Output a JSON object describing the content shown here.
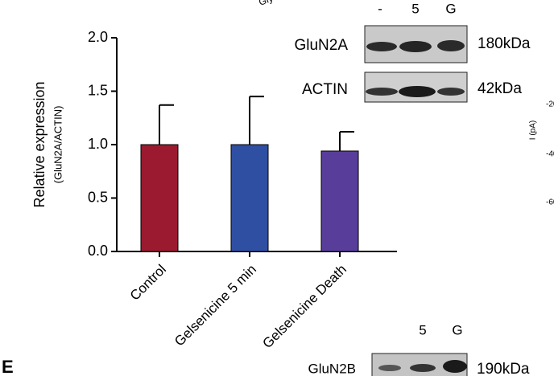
{
  "chart_data": {
    "type": "bar",
    "y_label": "Relative expression",
    "y_label_sub": "(GluN2A/ACTIN)",
    "categories": [
      "Control",
      "Gelsenicine 5 min",
      "Gelsenicine Death"
    ],
    "values": [
      1.0,
      1.0,
      0.94
    ],
    "errors": [
      0.37,
      0.45,
      0.18
    ],
    "colors": [
      "#9c1a30",
      "#2f4fa2",
      "#593d9b"
    ],
    "ylim": [
      0,
      2
    ],
    "yticks": [
      {
        "value": 0,
        "label": "0.0"
      },
      {
        "value": 0.5,
        "label": "0.5"
      },
      {
        "value": 1,
        "label": "1.0"
      },
      {
        "value": 1.5,
        "label": "1.5"
      },
      {
        "value": 2,
        "label": "2.0"
      }
    ],
    "annotations": [
      "-",
      "5",
      "G",
      "GluN2A",
      "180kDa",
      "ACTIN",
      "42kDa",
      "5",
      "G",
      "GluN2B",
      "190kDa",
      "E",
      "Gly",
      "I (pA)",
      "-20",
      "-40",
      "-60"
    ]
  }
}
